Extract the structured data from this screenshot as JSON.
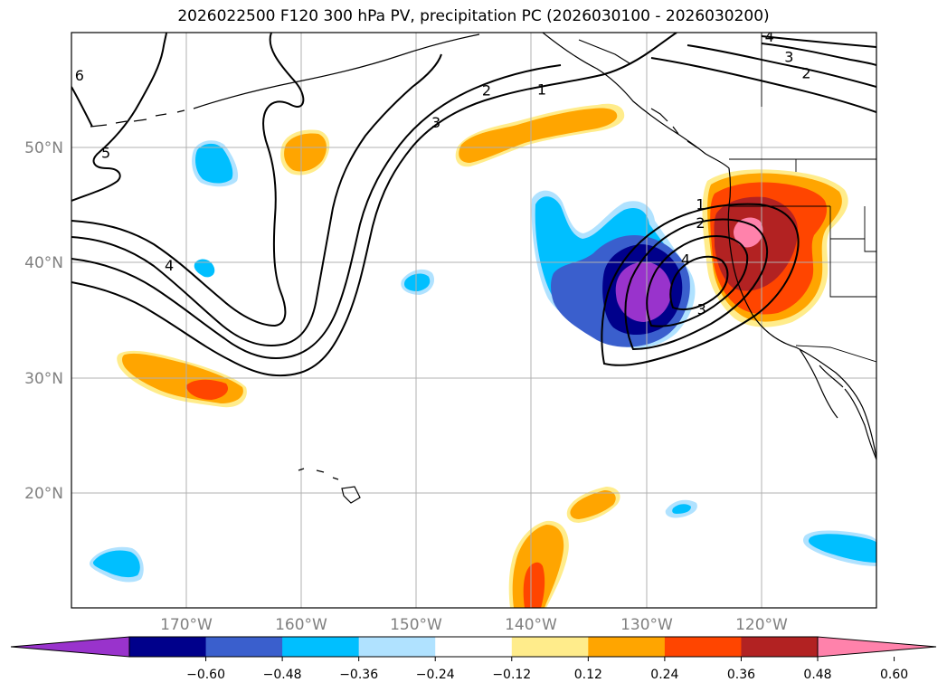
{
  "title": "2026022500 F120 300 hPa PV, precipitation PC (2026030100 - 2026030200)",
  "map": {
    "lon_range": [
      -180,
      -110
    ],
    "lat_range": [
      10,
      60
    ],
    "lat_ticks": [
      {
        "value": 20,
        "label": "20°N"
      },
      {
        "value": 30,
        "label": "30°N"
      },
      {
        "value": 40,
        "label": "40°N"
      },
      {
        "value": 50,
        "label": "50°N"
      }
    ],
    "lon_ticks": [
      {
        "value": -170,
        "label": "170°W"
      },
      {
        "value": -160,
        "label": "160°W"
      },
      {
        "value": -150,
        "label": "150°W"
      },
      {
        "value": -140,
        "label": "140°W"
      },
      {
        "value": -130,
        "label": "130°W"
      },
      {
        "value": -120,
        "label": "120°W"
      }
    ],
    "gridlines": true
  },
  "colorbar": {
    "extend": "both",
    "colors": [
      "#9933cc",
      "#00008b",
      "#3a5fcd",
      "#00bfff",
      "#b0e2ff",
      "#ffffff",
      "#ffec8b",
      "#ffa500",
      "#ff4500",
      "#b22222",
      "#ff82ab"
    ],
    "ticks": [
      "−0.60",
      "−0.48",
      "−0.36",
      "−0.24",
      "−0.12",
      "0.12",
      "0.24",
      "0.36",
      "0.48",
      "0.60"
    ]
  },
  "pv_contour_labels": [
    {
      "text": "6",
      "lon": -179.3,
      "lat": 56.3
    },
    {
      "text": "5",
      "lon": -177,
      "lat": 49.6
    },
    {
      "text": "4",
      "lon": -171.5,
      "lat": 39.8
    },
    {
      "text": "3",
      "lon": -148.3,
      "lat": 52.2
    },
    {
      "text": "2",
      "lon": -143.9,
      "lat": 55.0
    },
    {
      "text": "1",
      "lon": -139.1,
      "lat": 55.1
    },
    {
      "text": "4",
      "lon": -119.3,
      "lat": 59.7
    },
    {
      "text": "3",
      "lon": -117.6,
      "lat": 57.9
    },
    {
      "text": "2",
      "lon": -116.1,
      "lat": 56.5
    },
    {
      "text": "1",
      "lon": -125.3,
      "lat": 45.1
    },
    {
      "text": "2",
      "lon": -125.3,
      "lat": 43.5
    },
    {
      "text": "4",
      "lon": -126.6,
      "lat": 40.3
    },
    {
      "text": "3",
      "lon": -125.2,
      "lat": 36.0
    }
  ]
}
